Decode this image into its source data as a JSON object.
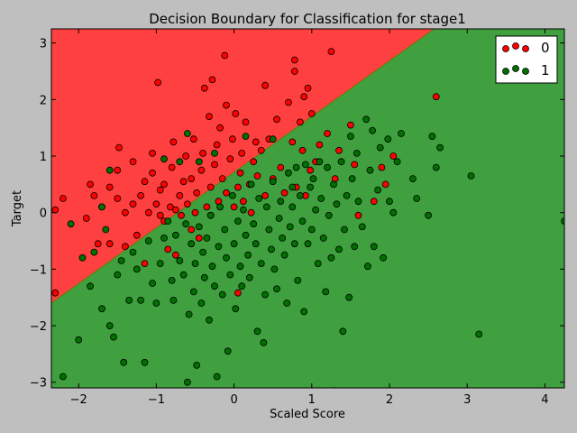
{
  "chart_data": {
    "type": "scatter",
    "title": "Decision Boundary for Classification for stage1",
    "xlabel": "Scaled Score",
    "ylabel": "Target",
    "xlim": [
      -2.35,
      4.25
    ],
    "ylim": [
      -3.1,
      3.25
    ],
    "xticks": [
      -2,
      -1,
      0,
      1,
      2,
      3,
      4
    ],
    "yticks": [
      -3,
      -2,
      -1,
      0,
      1,
      2,
      3
    ],
    "xtick_labels": [
      "−2",
      "−1",
      "0",
      "1",
      "2",
      "3",
      "4"
    ],
    "ytick_labels": [
      "−3",
      "−2",
      "−1",
      "0",
      "1",
      "2",
      "3"
    ],
    "grid": false,
    "legend_position": "top-right",
    "regions": {
      "boundary_line": {
        "x": [
          -2.35,
          4.25
        ],
        "y": [
          -1.6,
          4.9
        ]
      },
      "above_color": "#ff4040",
      "below_color": "#40a040"
    },
    "series": [
      {
        "name": "0",
        "color": "#ff0000",
        "points": [
          [
            -2.3,
            -1.42
          ],
          [
            -2.3,
            0.05
          ],
          [
            -2.2,
            0.25
          ],
          [
            -1.9,
            -0.1
          ],
          [
            -1.85,
            0.5
          ],
          [
            -1.8,
            0.3
          ],
          [
            -1.75,
            -0.55
          ],
          [
            -1.7,
            0.1
          ],
          [
            -1.6,
            -0.55
          ],
          [
            -1.6,
            0.45
          ],
          [
            -1.5,
            0.25
          ],
          [
            -1.5,
            0.75
          ],
          [
            -1.48,
            1.15
          ],
          [
            -1.4,
            -0.6
          ],
          [
            -1.4,
            0.0
          ],
          [
            -1.3,
            0.15
          ],
          [
            -1.3,
            0.9
          ],
          [
            -1.25,
            -0.4
          ],
          [
            -1.2,
            0.3
          ],
          [
            -1.15,
            -0.9
          ],
          [
            -1.15,
            0.55
          ],
          [
            -1.1,
            0.0
          ],
          [
            -1.05,
            0.7
          ],
          [
            -1.05,
            1.05
          ],
          [
            -1.0,
            0.15
          ],
          [
            -0.98,
            2.3
          ],
          [
            -0.95,
            -0.05
          ],
          [
            -0.95,
            0.4
          ],
          [
            -0.9,
            -0.15
          ],
          [
            -0.9,
            0.5
          ],
          [
            -0.85,
            -0.65
          ],
          [
            -0.82,
            0.1
          ],
          [
            -0.8,
            0.8
          ],
          [
            -0.78,
            1.25
          ],
          [
            -0.75,
            -0.75
          ],
          [
            -0.75,
            0.05
          ],
          [
            -0.7,
            0.3
          ],
          [
            -0.68,
            -0.05
          ],
          [
            -0.65,
            0.55
          ],
          [
            -0.62,
            1.0
          ],
          [
            -0.6,
            0.15
          ],
          [
            -0.55,
            -0.3
          ],
          [
            -0.55,
            0.6
          ],
          [
            -0.52,
            1.3
          ],
          [
            -0.5,
            0.0
          ],
          [
            -0.48,
            0.35
          ],
          [
            -0.45,
            -0.45
          ],
          [
            -0.42,
            0.75
          ],
          [
            -0.4,
            1.05
          ],
          [
            -0.38,
            2.2
          ],
          [
            -0.35,
            0.1
          ],
          [
            -0.32,
            1.7
          ],
          [
            -0.3,
            0.45
          ],
          [
            -0.3,
            -0.05
          ],
          [
            -0.28,
            2.35
          ],
          [
            -0.25,
            0.85
          ],
          [
            -0.22,
            1.2
          ],
          [
            -0.2,
            0.2
          ],
          [
            -0.18,
            1.5
          ],
          [
            -0.15,
            0.6
          ],
          [
            -0.12,
            2.78
          ],
          [
            -0.1,
            1.9
          ],
          [
            -0.1,
            0.35
          ],
          [
            -0.05,
            0.95
          ],
          [
            -0.02,
            1.3
          ],
          [
            0.0,
            0.1
          ],
          [
            0.02,
            1.75
          ],
          [
            0.05,
            0.45
          ],
          [
            0.05,
            -1.42
          ],
          [
            0.08,
            0.7
          ],
          [
            0.1,
            1.05
          ],
          [
            0.12,
            0.2
          ],
          [
            0.15,
            1.6
          ],
          [
            0.2,
            0.5
          ],
          [
            0.22,
            0.0
          ],
          [
            0.25,
            0.9
          ],
          [
            0.28,
            1.25
          ],
          [
            0.3,
            0.65
          ],
          [
            0.35,
            1.1
          ],
          [
            0.4,
            2.25
          ],
          [
            0.4,
            0.3
          ],
          [
            0.45,
            1.3
          ],
          [
            0.5,
            0.6
          ],
          [
            0.55,
            1.65
          ],
          [
            0.6,
            0.8
          ],
          [
            0.65,
            0.35
          ],
          [
            0.7,
            1.95
          ],
          [
            0.75,
            1.25
          ],
          [
            0.78,
            2.5
          ],
          [
            0.78,
            2.7
          ],
          [
            0.8,
            0.45
          ],
          [
            0.85,
            1.6
          ],
          [
            0.88,
            1.1
          ],
          [
            0.9,
            2.05
          ],
          [
            0.92,
            0.3
          ],
          [
            0.95,
            2.2
          ],
          [
            0.98,
            0.75
          ],
          [
            1.0,
            1.75
          ],
          [
            1.05,
            0.9
          ],
          [
            1.1,
            1.2
          ],
          [
            1.2,
            1.4
          ],
          [
            1.25,
            2.85
          ],
          [
            1.3,
            0.6
          ],
          [
            1.35,
            1.1
          ],
          [
            1.5,
            1.55
          ],
          [
            1.55,
            0.85
          ],
          [
            1.6,
            -0.05
          ],
          [
            1.8,
            0.2
          ],
          [
            1.9,
            0.8
          ],
          [
            1.95,
            0.5
          ],
          [
            2.05,
            1.0
          ],
          [
            2.6,
            2.05
          ]
        ]
      },
      {
        "name": "1",
        "color": "#007000",
        "points": [
          [
            -2.2,
            -2.9
          ],
          [
            -2.1,
            -0.2
          ],
          [
            -2.0,
            -2.25
          ],
          [
            -1.95,
            -0.8
          ],
          [
            -1.85,
            -1.3
          ],
          [
            -1.8,
            -0.7
          ],
          [
            -1.7,
            -1.7
          ],
          [
            -1.65,
            -0.3
          ],
          [
            -1.6,
            -2.0
          ],
          [
            -1.55,
            -2.2
          ],
          [
            -1.5,
            -1.1
          ],
          [
            -1.45,
            -0.85
          ],
          [
            -1.42,
            -2.65
          ],
          [
            -1.35,
            -1.55
          ],
          [
            -1.3,
            -0.7
          ],
          [
            -1.25,
            -1.0
          ],
          [
            -1.2,
            -1.55
          ],
          [
            -1.15,
            -2.65
          ],
          [
            -1.1,
            -0.5
          ],
          [
            -1.05,
            -1.25
          ],
          [
            -1.0,
            -1.6
          ],
          [
            -0.95,
            -0.9
          ],
          [
            -0.9,
            -0.45
          ],
          [
            -0.85,
            -0.15
          ],
          [
            -0.8,
            -1.2
          ],
          [
            -0.78,
            -1.55
          ],
          [
            -0.75,
            -0.4
          ],
          [
            -0.7,
            -0.85
          ],
          [
            -0.65,
            -1.1
          ],
          [
            -0.62,
            -0.2
          ],
          [
            -0.6,
            -3.0
          ],
          [
            -0.58,
            -1.8
          ],
          [
            -0.55,
            -0.55
          ],
          [
            -0.52,
            -1.4
          ],
          [
            -0.5,
            -0.9
          ],
          [
            -0.48,
            -2.7
          ],
          [
            -0.45,
            -0.25
          ],
          [
            -0.42,
            -1.6
          ],
          [
            -0.4,
            -0.7
          ],
          [
            -0.38,
            -1.15
          ],
          [
            -0.35,
            -0.45
          ],
          [
            -0.32,
            -1.9
          ],
          [
            -0.3,
            -0.05
          ],
          [
            -0.28,
            -0.95
          ],
          [
            -0.25,
            -1.3
          ],
          [
            -0.22,
            -2.9
          ],
          [
            -0.2,
            -0.6
          ],
          [
            -0.18,
            0.1
          ],
          [
            -0.15,
            -1.45
          ],
          [
            -0.12,
            -0.3
          ],
          [
            -0.1,
            -0.8
          ],
          [
            -0.08,
            -2.45
          ],
          [
            -0.05,
            -1.1
          ],
          [
            -0.02,
            0.3
          ],
          [
            0.0,
            -0.55
          ],
          [
            0.02,
            -1.7
          ],
          [
            0.05,
            -0.15
          ],
          [
            0.08,
            -0.95
          ],
          [
            0.1,
            -1.3
          ],
          [
            0.12,
            0.05
          ],
          [
            0.15,
            -0.4
          ],
          [
            0.18,
            -0.75
          ],
          [
            0.2,
            -1.15
          ],
          [
            0.22,
            0.5
          ],
          [
            0.25,
            -0.2
          ],
          [
            0.28,
            -0.55
          ],
          [
            0.3,
            -2.1
          ],
          [
            0.32,
            0.25
          ],
          [
            0.35,
            -0.9
          ],
          [
            0.38,
            -2.3
          ],
          [
            0.4,
            -1.45
          ],
          [
            0.42,
            0.1
          ],
          [
            0.45,
            -0.3
          ],
          [
            0.48,
            -0.65
          ],
          [
            0.5,
            0.55
          ],
          [
            0.52,
            -1.0
          ],
          [
            0.55,
            -1.35
          ],
          [
            0.58,
            -0.1
          ],
          [
            0.6,
            0.2
          ],
          [
            0.62,
            -0.45
          ],
          [
            0.65,
            -0.75
          ],
          [
            0.68,
            -1.6
          ],
          [
            0.7,
            0.7
          ],
          [
            0.72,
            -0.25
          ],
          [
            0.75,
            0.1
          ],
          [
            0.78,
            -0.55
          ],
          [
            0.8,
            0.8
          ],
          [
            0.82,
            -1.2
          ],
          [
            0.85,
            0.3
          ],
          [
            0.88,
            -0.15
          ],
          [
            0.9,
            -1.75
          ],
          [
            0.92,
            0.85
          ],
          [
            0.95,
            -0.55
          ],
          [
            0.98,
            0.45
          ],
          [
            1.0,
            -0.3
          ],
          [
            1.02,
            0.6
          ],
          [
            1.05,
            0.05
          ],
          [
            1.08,
            -0.9
          ],
          [
            1.1,
            0.9
          ],
          [
            1.12,
            0.25
          ],
          [
            1.15,
            -0.45
          ],
          [
            1.18,
            -1.4
          ],
          [
            1.2,
            0.8
          ],
          [
            1.22,
            -0.05
          ],
          [
            1.25,
            -0.8
          ],
          [
            1.28,
            0.5
          ],
          [
            1.3,
            -3.15
          ],
          [
            1.32,
            0.15
          ],
          [
            1.35,
            -0.65
          ],
          [
            1.38,
            0.9
          ],
          [
            1.4,
            -2.1
          ],
          [
            1.42,
            -0.3
          ],
          [
            1.45,
            0.3
          ],
          [
            1.48,
            -1.5
          ],
          [
            1.5,
            1.35
          ],
          [
            1.52,
            0.6
          ],
          [
            1.55,
            -0.6
          ],
          [
            1.58,
            1.05
          ],
          [
            1.6,
            0.2
          ],
          [
            1.65,
            -0.25
          ],
          [
            1.7,
            1.65
          ],
          [
            1.72,
            -0.95
          ],
          [
            1.75,
            0.75
          ],
          [
            1.78,
            1.45
          ],
          [
            1.8,
            -0.6
          ],
          [
            1.85,
            0.4
          ],
          [
            1.88,
            1.15
          ],
          [
            1.92,
            -0.8
          ],
          [
            1.98,
            1.3
          ],
          [
            2.0,
            0.2
          ],
          [
            2.05,
            0.0
          ],
          [
            2.1,
            0.9
          ],
          [
            2.15,
            1.4
          ],
          [
            2.3,
            0.6
          ],
          [
            2.35,
            0.25
          ],
          [
            2.5,
            -0.05
          ],
          [
            2.55,
            1.35
          ],
          [
            2.6,
            0.8
          ],
          [
            2.65,
            1.15
          ],
          [
            3.05,
            0.65
          ],
          [
            3.15,
            -2.15
          ],
          [
            4.25,
            -0.15
          ],
          [
            -0.25,
            1.05
          ],
          [
            -0.45,
            0.9
          ],
          [
            -0.6,
            1.4
          ],
          [
            -0.9,
            0.95
          ],
          [
            -1.7,
            0.1
          ],
          [
            -1.6,
            0.75
          ],
          [
            0.15,
            1.35
          ],
          [
            0.5,
            1.3
          ],
          [
            0.75,
            0.45
          ],
          [
            -0.7,
            0.9
          ]
        ]
      }
    ]
  }
}
